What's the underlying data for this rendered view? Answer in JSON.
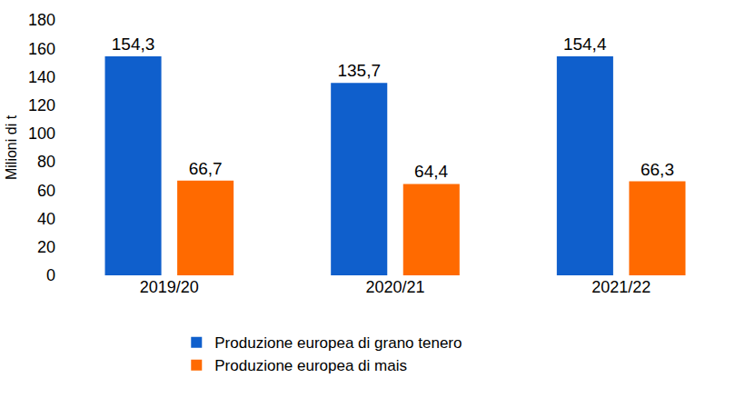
{
  "chart_data": {
    "type": "bar",
    "y_label": "Milioni di t",
    "categories": [
      "2019/20",
      "2020/21",
      "2021/22"
    ],
    "series": [
      {
        "name": "Produzione europea di grano tenero",
        "color": "#0f5fcc",
        "values": [
          154.3,
          135.7,
          154.4
        ],
        "value_labels": [
          "154,3",
          "135,7",
          "154,4"
        ]
      },
      {
        "name": "Produzione europea di mais",
        "color": "#ff6a00",
        "values": [
          66.7,
          64.4,
          66.3
        ],
        "value_labels": [
          "66,7",
          "64,4",
          "66,3"
        ]
      }
    ],
    "ylim": [
      0,
      180
    ],
    "yticks": [
      0,
      20,
      40,
      60,
      80,
      100,
      120,
      140,
      160,
      180
    ],
    "grid": false,
    "data_labels": true,
    "legend": "bottom"
  }
}
